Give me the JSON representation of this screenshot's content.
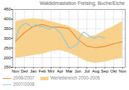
{
  "chart_data": {
    "type": "line",
    "title": "Waldklimastation Freising, Buche/Eiche",
    "categories": [
      "Nov",
      "Dez",
      "Jan",
      "Feb",
      "Mrz",
      "Apr",
      "Mai",
      "Jun",
      "Jul",
      "Aug",
      "Sep",
      "Okt",
      "Nov"
    ],
    "xlim": [
      -0.3,
      12.3
    ],
    "ylim": [
      150,
      450
    ],
    "yticks": [
      150,
      200,
      250,
      300,
      350,
      400,
      450
    ],
    "grid": true,
    "legend": "bottom",
    "series": [
      {
        "name": "2006/2007",
        "type": "line",
        "color": "#e88832",
        "values": [
          285,
          330,
          362,
          372,
          358,
          358,
          350,
          295,
          260,
          252,
          258,
          272,
          282
        ]
      },
      {
        "name": "Wertebereich 2000-2006",
        "type": "area",
        "color": "#f7cc80",
        "upper": [
          388,
          398,
          402,
          398,
          388,
          375,
          362,
          338,
          305,
          315,
          340,
          362,
          388
        ],
        "lower": [
          198,
          203,
          212,
          218,
          232,
          238,
          225,
          205,
          180,
          172,
          178,
          188,
          198
        ]
      },
      {
        "name": "2007/2008",
        "type": "line",
        "color": "#82cce8",
        "x": [
          0,
          0.15,
          0.3,
          0.5,
          0.7,
          0.85,
          1.0,
          1.2,
          1.4,
          1.6,
          1.8,
          2.0,
          2.2,
          2.4,
          2.6,
          2.8,
          3.0,
          3.2,
          3.4,
          3.6,
          3.8,
          4.0,
          4.2,
          4.4,
          4.6,
          4.8,
          5.0,
          5.2,
          5.4,
          5.6,
          5.8,
          6.0,
          6.2,
          6.4,
          6.6,
          6.8,
          7.0,
          7.2,
          7.4,
          7.6,
          7.8,
          8.0,
          8.2,
          8.4,
          8.6,
          8.8,
          9.0,
          9.2,
          9.4,
          9.6,
          9.8,
          10.0
        ],
        "values": [
          292,
          310,
          340,
          355,
          368,
          372,
          375,
          378,
          372,
          368,
          360,
          362,
          368,
          370,
          365,
          360,
          362,
          358,
          355,
          350,
          348,
          352,
          358,
          355,
          345,
          338,
          330,
          318,
          300,
          285,
          268,
          252,
          248,
          255,
          260,
          268,
          272,
          305,
          318,
          332,
          330,
          322,
          315,
          310,
          306,
          300,
          305,
          308,
          310,
          308,
          305,
          302
        ]
      }
    ]
  }
}
